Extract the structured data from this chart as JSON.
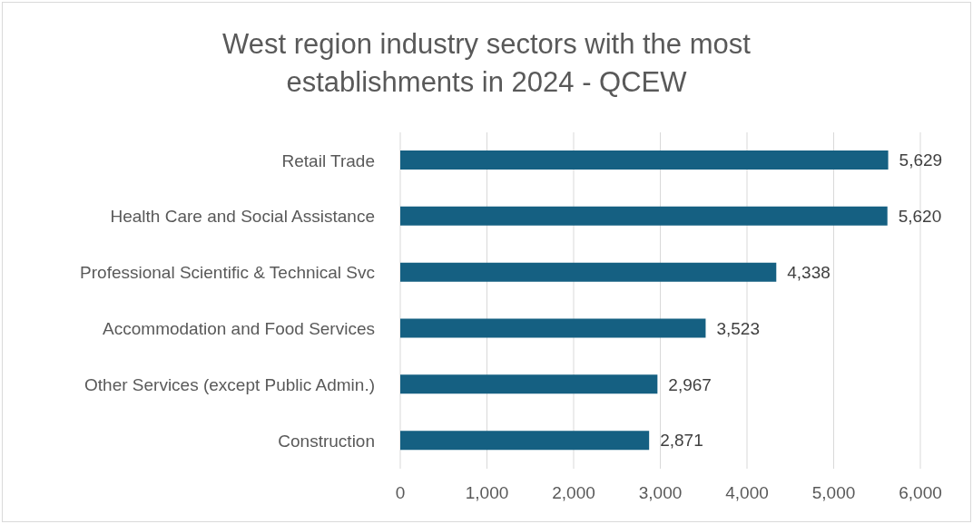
{
  "chart_data": {
    "type": "bar",
    "orientation": "horizontal",
    "title": "West region industry sectors with the most establishments in 2024 - QCEW",
    "categories": [
      "Retail Trade",
      "Health Care and Social Assistance",
      "Professional Scientific & Technical Svc",
      "Accommodation and Food Services",
      "Other Services (except Public Admin.)",
      "Construction"
    ],
    "values": [
      5629,
      5620,
      4338,
      3523,
      2967,
      2871
    ],
    "value_labels": [
      "5,629",
      "5,620",
      "4,338",
      "3,523",
      "2,967",
      "2,871"
    ],
    "color": "#156082",
    "xlim": [
      0,
      6000
    ],
    "xticks": [
      0,
      {
        "value": 1000,
        "label": "1,000"
      },
      {
        "value": 2000,
        "label": "2,000"
      },
      {
        "value": 3000,
        "label": "3,000"
      },
      {
        "value": 4000,
        "label": "4,000"
      },
      {
        "value": 5000,
        "label": "5,000"
      },
      {
        "value": 6000,
        "label": "6,000"
      }
    ],
    "grid": "x"
  }
}
